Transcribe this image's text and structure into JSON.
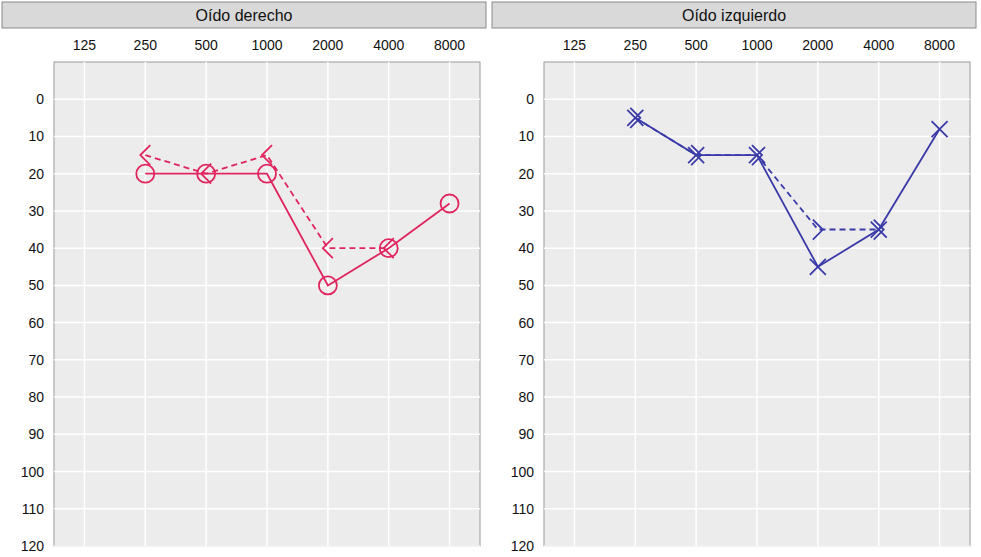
{
  "chart_data": [
    {
      "type": "line",
      "title": "Oído derecho",
      "categories": [
        "125",
        "250",
        "500",
        "1000",
        "2000",
        "4000",
        "8000"
      ],
      "ylim": [
        120,
        -10
      ],
      "yticks": [
        0,
        10,
        20,
        30,
        40,
        50,
        60,
        70,
        80,
        90,
        100,
        110,
        120
      ],
      "grid": true,
      "series": [
        {
          "color": "#e0245e",
          "marker": "circle",
          "line_style": "solid",
          "values": [
            null,
            20,
            20,
            20,
            50,
            40,
            28
          ]
        },
        {
          "color": "#e0245e",
          "marker": "less-than",
          "line_style": "dashed",
          "values": [
            null,
            15,
            20,
            15,
            40,
            40,
            null
          ]
        }
      ]
    },
    {
      "type": "line",
      "title": "Oído izquierdo",
      "categories": [
        "125",
        "250",
        "500",
        "1000",
        "2000",
        "4000",
        "8000"
      ],
      "ylim": [
        120,
        -10
      ],
      "yticks": [
        0,
        10,
        20,
        30,
        40,
        50,
        60,
        70,
        80,
        90,
        100,
        110,
        120
      ],
      "grid": true,
      "series": [
        {
          "color": "#3a3aa8",
          "marker": "x",
          "line_style": "solid",
          "values": [
            null,
            5,
            15,
            15,
            45,
            35,
            8
          ]
        },
        {
          "color": "#3a3aa8",
          "marker": "greater-than",
          "line_style": "dashed",
          "values": [
            null,
            5,
            15,
            15,
            35,
            35,
            null
          ]
        }
      ]
    }
  ]
}
